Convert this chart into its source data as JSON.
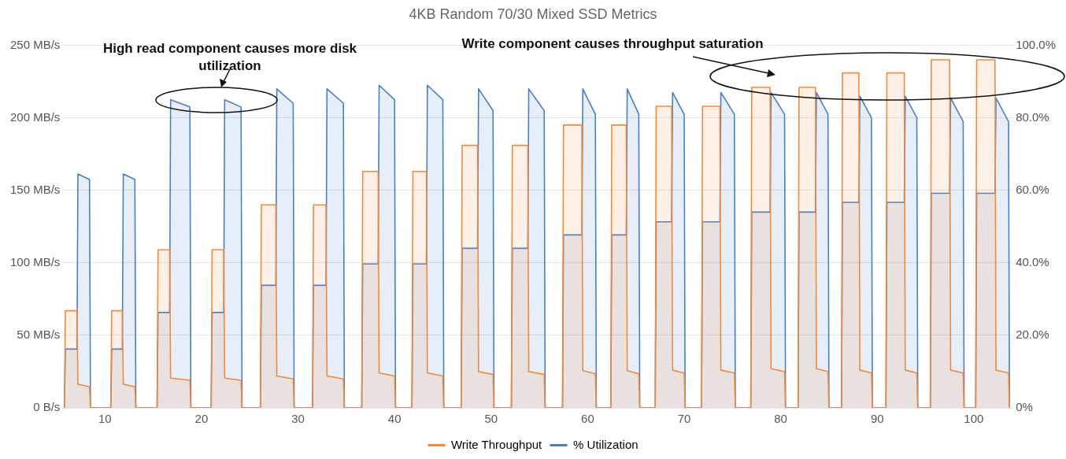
{
  "chart_data": {
    "type": "area",
    "title": "4KB Random 70/30 Mixed SSD Metrics",
    "x": [
      5.8,
      5.9,
      7.1,
      7.2,
      8.4,
      8.5,
      10.6,
      10.7,
      11.8,
      11.9,
      13.1,
      13.2,
      15.4,
      15.5,
      16.7,
      16.8,
      18.8,
      18.9,
      21.0,
      21.1,
      22.3,
      22.4,
      24.1,
      24.2,
      26.1,
      26.2,
      27.7,
      27.8,
      29.5,
      29.6,
      31.5,
      31.6,
      32.9,
      33.0,
      34.7,
      34.8,
      36.6,
      36.7,
      38.3,
      38.4,
      40.0,
      40.1,
      41.8,
      41.9,
      43.3,
      43.4,
      45.0,
      45.1,
      46.9,
      47.0,
      48.6,
      48.7,
      50.2,
      50.3,
      52.1,
      52.2,
      53.8,
      53.9,
      55.5,
      55.6,
      57.4,
      57.5,
      59.4,
      59.5,
      60.8,
      60.9,
      62.4,
      62.5,
      64.0,
      64.1,
      65.3,
      65.4,
      67.0,
      67.1,
      68.7,
      68.8,
      70.0,
      70.1,
      71.8,
      71.9,
      73.7,
      73.8,
      75.2,
      75.3,
      76.9,
      77.0,
      78.9,
      79.0,
      80.4,
      80.5,
      81.8,
      81.9,
      83.6,
      83.7,
      84.9,
      85.0,
      86.3,
      86.4,
      88.1,
      88.2,
      89.4,
      89.5,
      90.9,
      91.0,
      92.8,
      92.9,
      94.1,
      94.2,
      95.5,
      95.6,
      97.5,
      97.6,
      98.9,
      99.0,
      100.2,
      100.3,
      102.2,
      102.3,
      103.6,
      103.7
    ],
    "series": [
      {
        "name": "Write Throughput",
        "color": "#f08a3c",
        "values": [
          0,
          67,
          67,
          16.3,
          14.5,
          0,
          0,
          67,
          67,
          16.3,
          14.5,
          0,
          0,
          109,
          109,
          20.5,
          19,
          0,
          0,
          109,
          109,
          20.5,
          19,
          0,
          0,
          140,
          140,
          22,
          20,
          0,
          0,
          140,
          140,
          22,
          20,
          0,
          0,
          163,
          163,
          24,
          22,
          0,
          0,
          163,
          163,
          24,
          22,
          0,
          0,
          181,
          181,
          25,
          23,
          0,
          0,
          181,
          181,
          25,
          23,
          0,
          0,
          195,
          195,
          25.7,
          23.5,
          0,
          0,
          195,
          195,
          25.7,
          23.5,
          0,
          0,
          208,
          208,
          26,
          24,
          0,
          0,
          208,
          208,
          26,
          24,
          0,
          0,
          221,
          221,
          27,
          25,
          0,
          0,
          221,
          221,
          27,
          25,
          0,
          0,
          231,
          231,
          26,
          24,
          0,
          0,
          231,
          231,
          26,
          24,
          0,
          0,
          240,
          240,
          26,
          24,
          0,
          0,
          240,
          240,
          26,
          24,
          0
        ]
      },
      {
        "name": "% Utilization",
        "color": "#4a7fc4",
        "axis": "y2",
        "values": [
          0,
          16.2,
          16.2,
          64.5,
          63,
          0,
          0,
          16.2,
          16.2,
          64.5,
          63,
          0,
          0,
          26.3,
          26.3,
          85,
          83,
          0,
          0,
          26.3,
          26.3,
          85,
          83,
          0,
          0,
          33.8,
          33.8,
          88,
          84,
          0,
          0,
          33.8,
          33.8,
          88,
          84,
          0,
          0,
          39.7,
          39.7,
          89,
          85,
          0,
          0,
          39.7,
          39.7,
          89,
          85,
          0,
          0,
          44,
          44,
          88,
          82,
          0,
          0,
          44,
          44,
          88,
          82,
          0,
          0,
          47.7,
          47.7,
          88,
          81,
          0,
          0,
          47.7,
          47.7,
          88,
          81,
          0,
          0,
          51.3,
          51.3,
          87,
          81,
          0,
          0,
          51.3,
          51.3,
          87,
          81,
          0,
          0,
          54,
          54,
          87,
          81,
          0,
          0,
          54,
          54,
          87,
          81,
          0,
          0,
          56.7,
          56.7,
          86,
          80,
          0,
          0,
          56.7,
          56.7,
          86,
          80,
          0,
          0,
          59.2,
          59.2,
          85.5,
          79,
          0,
          0,
          59.2,
          59.2,
          85.5,
          79,
          0
        ]
      }
    ],
    "xlim": [
      5.6,
      104.1
    ],
    "xticks": [
      10,
      20,
      30,
      40,
      50,
      60,
      70,
      80,
      90,
      100
    ],
    "ylim": [
      0,
      250
    ],
    "yticks": [
      {
        "value": 0,
        "label": "0 B/s"
      },
      {
        "value": 50,
        "label": "50 MB/s"
      },
      {
        "value": 100,
        "label": "100 MB/s"
      },
      {
        "value": 150,
        "label": "150 MB/s"
      },
      {
        "value": 200,
        "label": "200 MB/s"
      },
      {
        "value": 250,
        "label": "250 MB/s"
      }
    ],
    "y2lim": [
      0,
      100
    ],
    "y2ticks": [
      {
        "value": 0,
        "label": "0%"
      },
      {
        "value": 20,
        "label": "20.0%"
      },
      {
        "value": 40,
        "label": "40.0%"
      },
      {
        "value": 60,
        "label": "60.0%"
      },
      {
        "value": 80,
        "label": "80.0%"
      },
      {
        "value": 100,
        "label": "100.0%"
      }
    ],
    "annotations": [
      "High read component causes more disk utilization",
      "Write component causes throughput saturation"
    ],
    "grid": "y",
    "legend": "bottom",
    "marker": "none",
    "line_style": "solid"
  }
}
